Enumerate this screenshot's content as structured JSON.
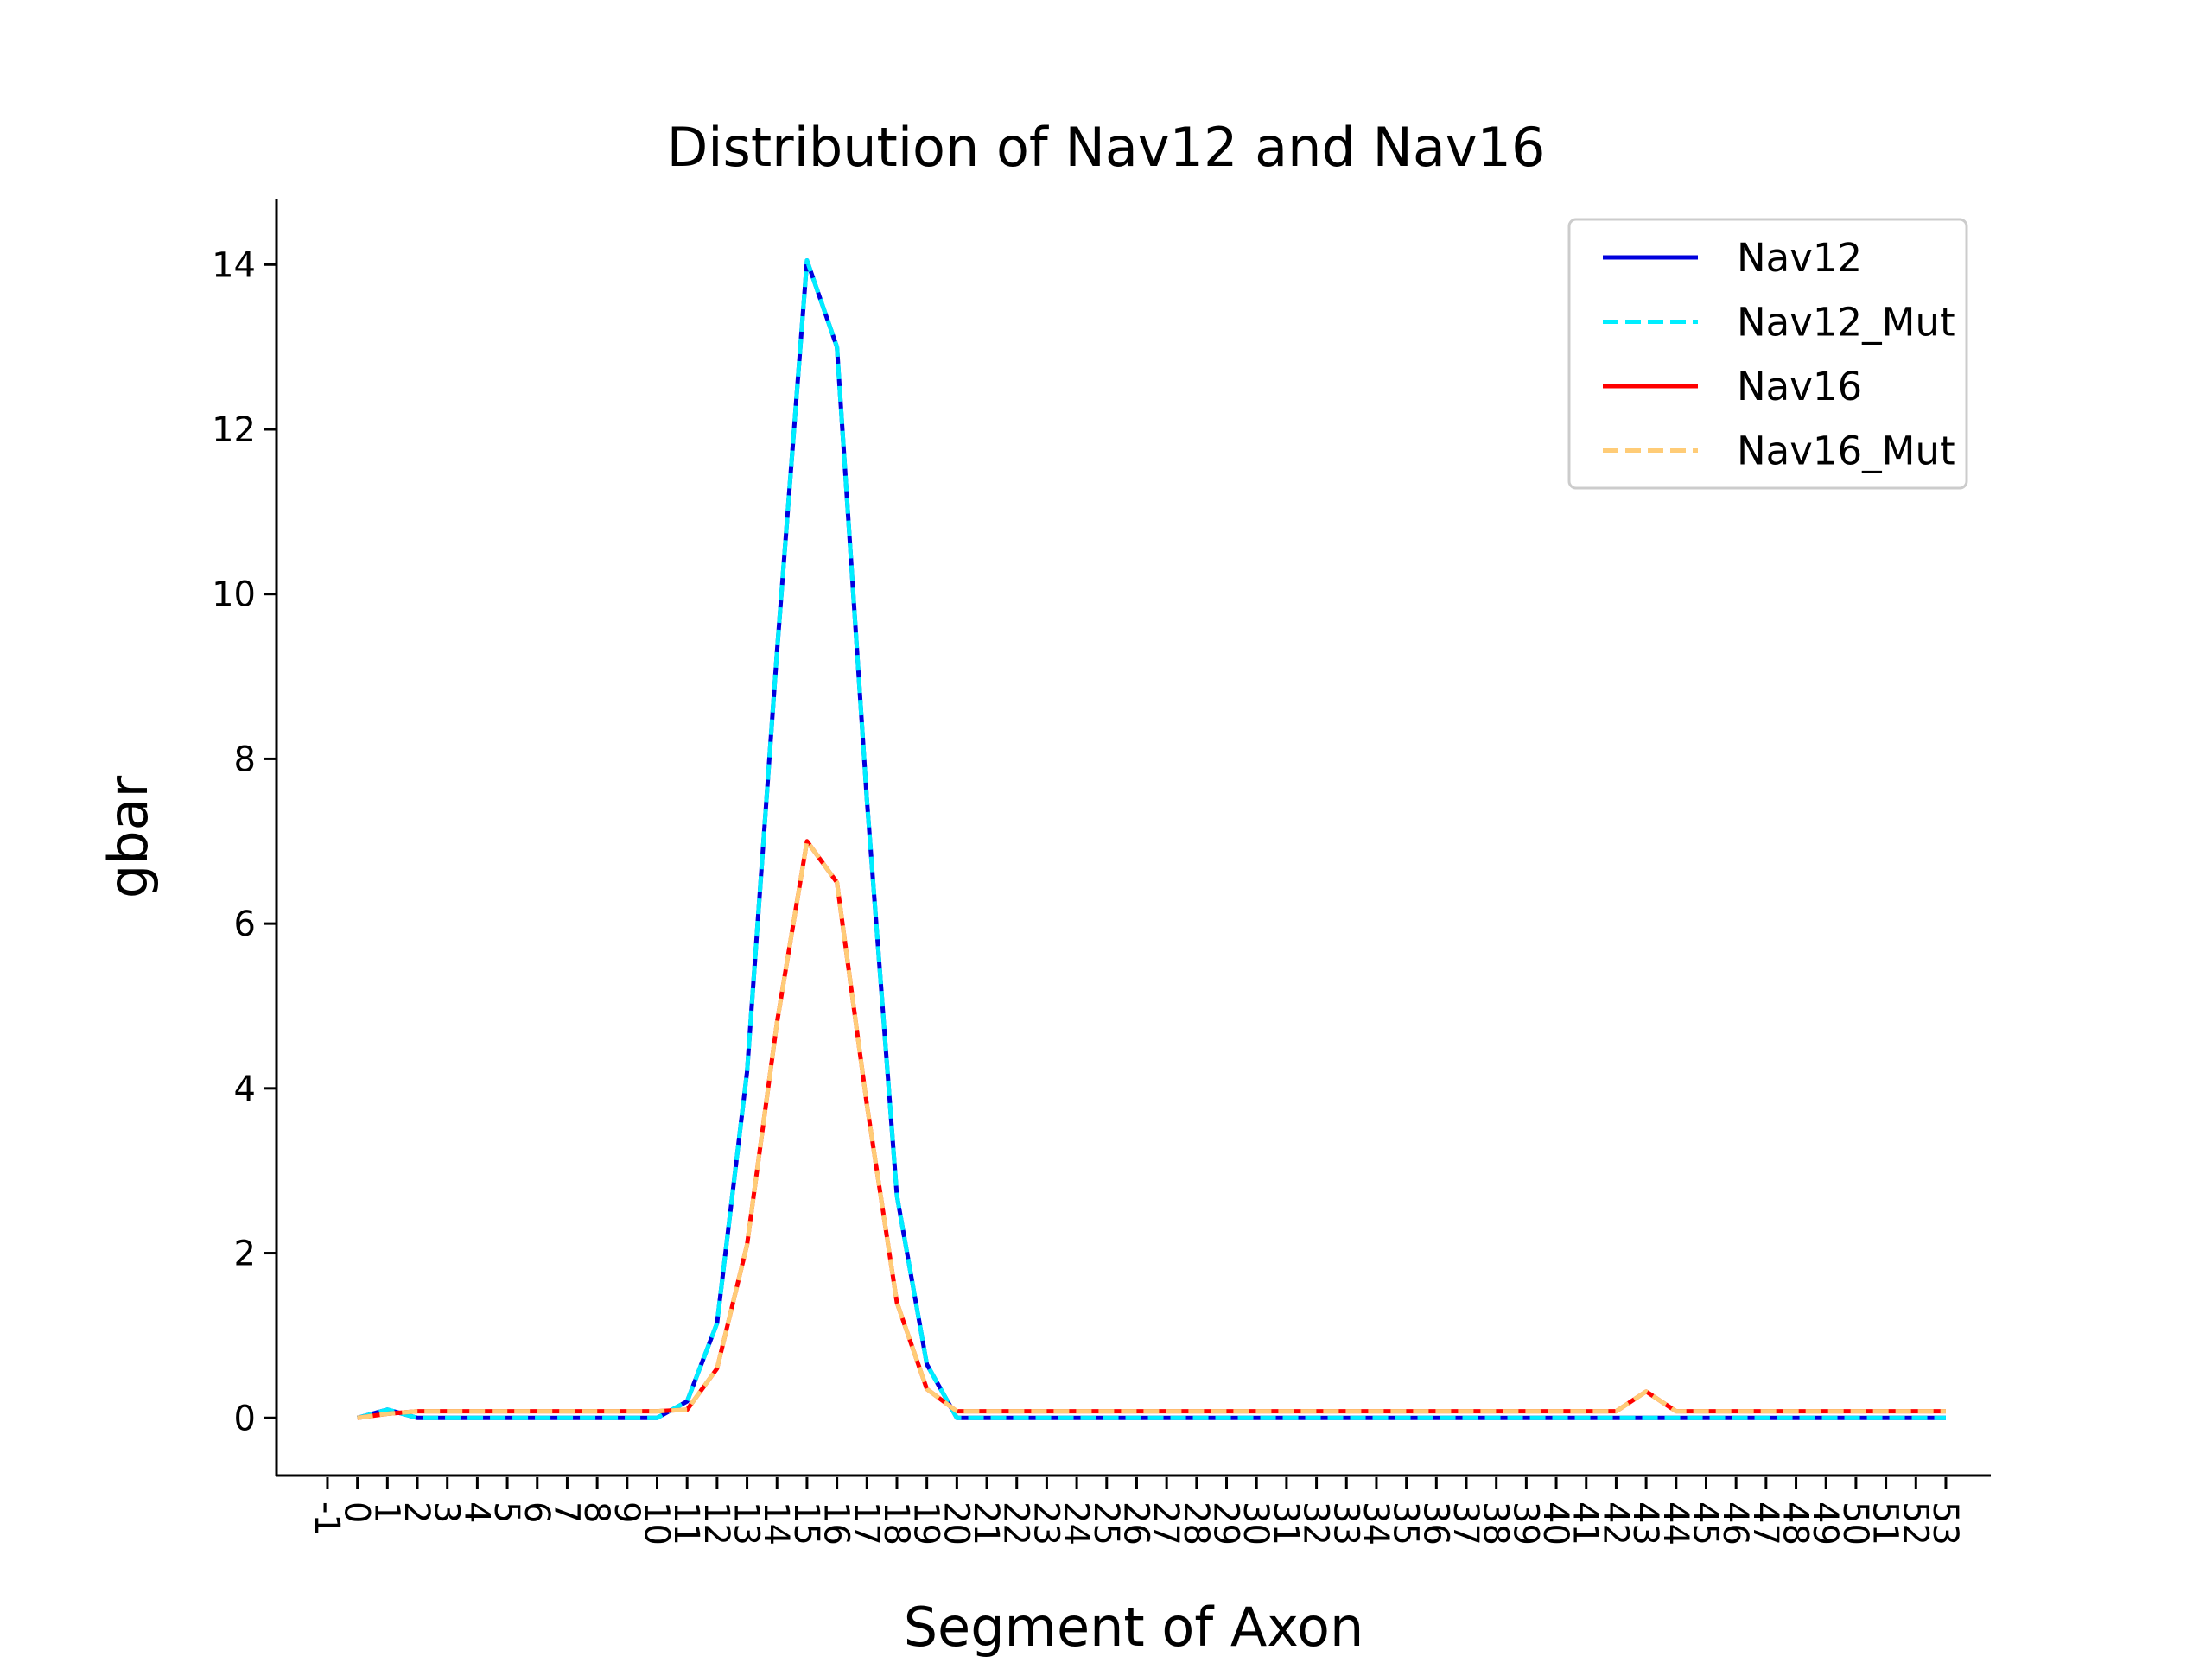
{
  "chart_data": {
    "type": "line",
    "title": "Distribution of Nav12 and Nav16",
    "xlabel": "Segment of Axon",
    "ylabel": "gbar",
    "xlim": [
      -2.7,
      54.5
    ],
    "ylim": [
      -0.7,
      14.8
    ],
    "x_ticks": [
      -1,
      0,
      1,
      2,
      3,
      4,
      5,
      6,
      7,
      8,
      9,
      10,
      11,
      12,
      13,
      14,
      15,
      16,
      17,
      18,
      19,
      20,
      21,
      22,
      23,
      24,
      25,
      26,
      27,
      28,
      29,
      30,
      31,
      32,
      33,
      34,
      35,
      36,
      37,
      38,
      39,
      40,
      41,
      42,
      43,
      44,
      45,
      46,
      47,
      48,
      49,
      50,
      51,
      52,
      53
    ],
    "y_ticks": [
      0,
      2,
      4,
      6,
      8,
      10,
      12,
      14
    ],
    "grid": false,
    "legend_position": "top-right",
    "x": [
      0,
      1,
      2,
      3,
      4,
      5,
      6,
      7,
      8,
      9,
      10,
      11,
      12,
      13,
      14,
      15,
      16,
      17,
      18,
      19,
      20,
      21,
      22,
      23,
      24,
      25,
      26,
      27,
      28,
      29,
      30,
      31,
      32,
      33,
      34,
      35,
      36,
      37,
      38,
      39,
      40,
      41,
      42,
      43,
      44,
      45,
      46,
      47,
      48,
      49,
      50,
      51,
      52,
      53
    ],
    "series": [
      {
        "name": "Nav12",
        "color": "#0000dd",
        "style": "solid",
        "values": [
          0,
          0.1,
          0,
          0,
          0,
          0,
          0,
          0,
          0,
          0,
          0,
          0.2,
          1.15,
          4.2,
          9.3,
          14.05,
          13.0,
          7.5,
          2.7,
          0.65,
          0,
          0,
          0,
          0,
          0,
          0,
          0,
          0,
          0,
          0,
          0,
          0,
          0,
          0,
          0,
          0,
          0,
          0,
          0,
          0,
          0,
          0,
          0,
          0,
          0,
          0,
          0,
          0,
          0,
          0,
          0,
          0,
          0,
          0
        ]
      },
      {
        "name": "Nav12_Mut",
        "color": "#00eeff",
        "style": "dashed",
        "values": [
          0,
          0.1,
          0,
          0,
          0,
          0,
          0,
          0,
          0,
          0,
          0,
          0.2,
          1.15,
          4.2,
          9.3,
          14.05,
          13.0,
          7.5,
          2.7,
          0.65,
          0,
          0,
          0,
          0,
          0,
          0,
          0,
          0,
          0,
          0,
          0,
          0,
          0,
          0,
          0,
          0,
          0,
          0,
          0,
          0,
          0,
          0,
          0,
          0,
          0,
          0,
          0,
          0,
          0,
          0,
          0,
          0,
          0,
          0
        ]
      },
      {
        "name": "Nav16",
        "color": "#ff0000",
        "style": "solid",
        "values": [
          0,
          0.05,
          0.08,
          0.08,
          0.08,
          0.08,
          0.08,
          0.08,
          0.08,
          0.08,
          0.08,
          0.1,
          0.6,
          2.1,
          4.8,
          7.0,
          6.5,
          3.8,
          1.4,
          0.35,
          0.08,
          0.08,
          0.08,
          0.08,
          0.08,
          0.08,
          0.08,
          0.08,
          0.08,
          0.08,
          0.08,
          0.08,
          0.08,
          0.08,
          0.08,
          0.08,
          0.08,
          0.08,
          0.08,
          0.08,
          0.08,
          0.08,
          0.08,
          0.32,
          0.08,
          0.08,
          0.08,
          0.08,
          0.08,
          0.08,
          0.08,
          0.08,
          0.08,
          0.08
        ]
      },
      {
        "name": "Nav16_Mut",
        "color": "#ffcc77",
        "style": "dashed",
        "values": [
          0,
          0.05,
          0.08,
          0.08,
          0.08,
          0.08,
          0.08,
          0.08,
          0.08,
          0.08,
          0.08,
          0.1,
          0.6,
          2.1,
          4.8,
          7.0,
          6.5,
          3.8,
          1.4,
          0.35,
          0.08,
          0.08,
          0.08,
          0.08,
          0.08,
          0.08,
          0.08,
          0.08,
          0.08,
          0.08,
          0.08,
          0.08,
          0.08,
          0.08,
          0.08,
          0.08,
          0.08,
          0.08,
          0.08,
          0.08,
          0.08,
          0.08,
          0.08,
          0.32,
          0.08,
          0.08,
          0.08,
          0.08,
          0.08,
          0.08,
          0.08,
          0.08,
          0.08,
          0.08
        ]
      }
    ]
  }
}
